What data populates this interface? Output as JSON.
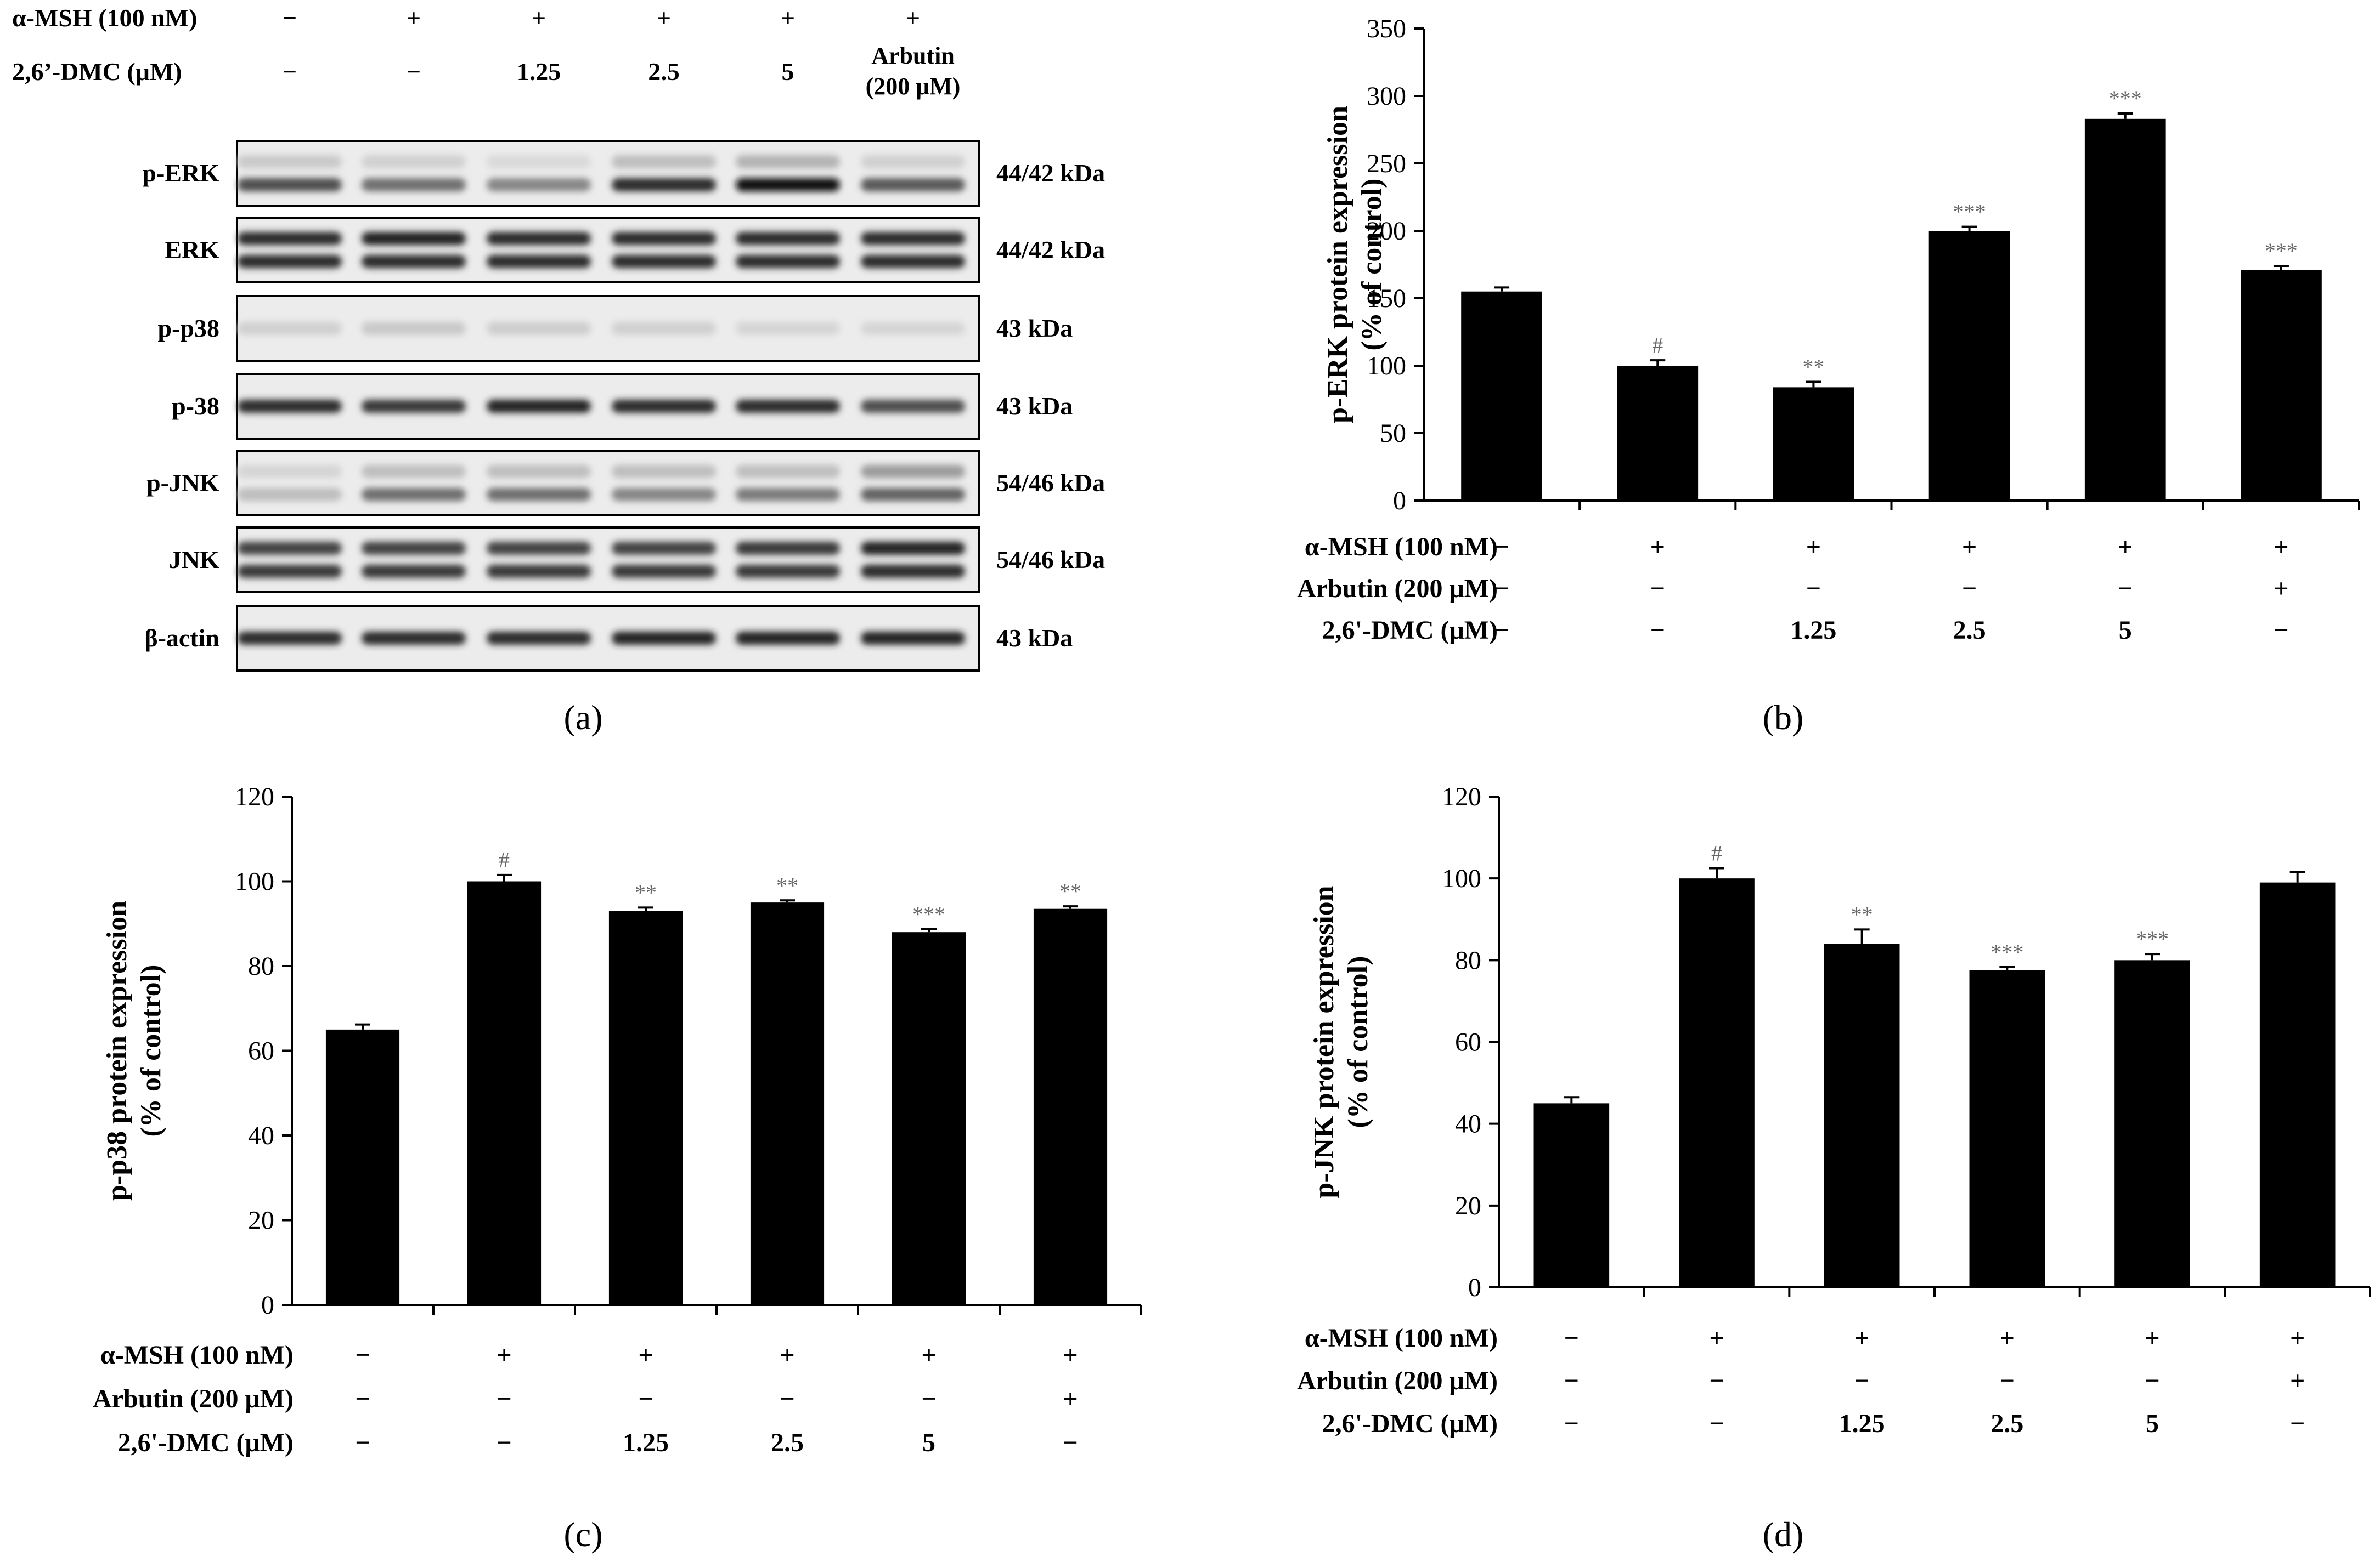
{
  "panel_a": {
    "caption": "(a)",
    "treatment_rows": [
      {
        "label": "α-MSH (100 nM)",
        "values": [
          "−",
          "+",
          "+",
          "+",
          "+",
          "+"
        ]
      },
      {
        "label": "2,6’-DMC (μM)",
        "values": [
          "−",
          "−",
          "1.25",
          "2.5",
          "5",
          "Arbutin\n(200 μM)"
        ]
      }
    ],
    "blots": [
      {
        "label": "p-ERK",
        "size": "44/42 kDa",
        "bands": 2,
        "intensity": [
          [
            0.15,
            0.12,
            0.08,
            0.2,
            0.25,
            0.12
          ],
          [
            0.7,
            0.55,
            0.45,
            0.85,
            0.98,
            0.65
          ]
        ]
      },
      {
        "label": "ERK",
        "size": "44/42 kDa",
        "bands": 2,
        "intensity": [
          [
            0.85,
            0.9,
            0.85,
            0.85,
            0.85,
            0.85
          ],
          [
            0.85,
            0.85,
            0.85,
            0.85,
            0.85,
            0.85
          ]
        ]
      },
      {
        "label": "p-p38",
        "size": "43 kDa",
        "bands": 1,
        "intensity": [
          [
            0.12,
            0.15,
            0.13,
            0.12,
            0.1,
            0.1
          ]
        ]
      },
      {
        "label": "p-38",
        "size": "43 kDa",
        "bands": 1,
        "intensity": [
          [
            0.85,
            0.8,
            0.9,
            0.85,
            0.85,
            0.7
          ]
        ]
      },
      {
        "label": "p-JNK",
        "size": "54/46 kDa",
        "bands": 2,
        "intensity": [
          [
            0.1,
            0.2,
            0.2,
            0.2,
            0.2,
            0.35
          ],
          [
            0.2,
            0.55,
            0.55,
            0.45,
            0.5,
            0.6
          ]
        ]
      },
      {
        "label": "JNK",
        "size": "54/46 kDa",
        "bands": 2,
        "intensity": [
          [
            0.75,
            0.75,
            0.75,
            0.75,
            0.8,
            0.9
          ],
          [
            0.8,
            0.8,
            0.8,
            0.8,
            0.8,
            0.85
          ]
        ]
      },
      {
        "label": "β-actin",
        "size": "43 kDa",
        "bands": 1,
        "intensity": [
          [
            0.85,
            0.85,
            0.85,
            0.9,
            0.9,
            0.9
          ]
        ]
      }
    ]
  },
  "chart_data": [
    {
      "type": "bar",
      "caption": "(b)",
      "ylabel": [
        "p-ERK protein expression",
        "(% of control)"
      ],
      "ylim": [
        0,
        350
      ],
      "yticks": [
        0,
        50,
        100,
        150,
        200,
        250,
        300,
        350
      ],
      "values": [
        155,
        100,
        84,
        200,
        283,
        171
      ],
      "errors": [
        3,
        4,
        4,
        3,
        4,
        3
      ],
      "significance": [
        "",
        "#",
        "**",
        "***",
        "***",
        "***"
      ],
      "treatment_rows": [
        {
          "label": "α-MSH (100 nM)",
          "values": [
            "−",
            "+",
            "+",
            "+",
            "+",
            "+"
          ]
        },
        {
          "label": "Arbutin (200 μM)",
          "values": [
            "−",
            "−",
            "−",
            "−",
            "−",
            "+"
          ]
        },
        {
          "label": "2,6'-DMC (μM)",
          "values": [
            "−",
            "−",
            "1.25",
            "2.5",
            "5",
            "−"
          ]
        }
      ]
    },
    {
      "type": "bar",
      "caption": "(c)",
      "ylabel": [
        "p-p38 protein expression",
        "(% of control)"
      ],
      "ylim": [
        0,
        120
      ],
      "yticks": [
        0,
        20,
        40,
        60,
        80,
        100,
        120
      ],
      "values": [
        65,
        100,
        93,
        95,
        88,
        93.5
      ],
      "errors": [
        1.2,
        1.5,
        0.8,
        0.5,
        0.7,
        0.6
      ],
      "significance": [
        "",
        "#",
        "**",
        "**",
        "***",
        "**"
      ],
      "treatment_rows": [
        {
          "label": "α-MSH (100 nM)",
          "values": [
            "−",
            "+",
            "+",
            "+",
            "+",
            "+"
          ]
        },
        {
          "label": "Arbutin (200 μM)",
          "values": [
            "−",
            "−",
            "−",
            "−",
            "−",
            "+"
          ]
        },
        {
          "label": "2,6'-DMC (μM)",
          "values": [
            "−",
            "−",
            "1.25",
            "2.5",
            "5",
            "−"
          ]
        }
      ]
    },
    {
      "type": "bar",
      "caption": "(d)",
      "ylabel": [
        "p-JNK protein expression",
        "(% of control)"
      ],
      "ylim": [
        0,
        120
      ],
      "yticks": [
        0,
        20,
        40,
        60,
        80,
        100,
        120
      ],
      "values": [
        45,
        100,
        84,
        77.5,
        80,
        99
      ],
      "errors": [
        1.5,
        2.5,
        3.5,
        0.8,
        1.5,
        2.5
      ],
      "significance": [
        "",
        "#",
        "**",
        "***",
        "***",
        ""
      ],
      "treatment_rows": [
        {
          "label": "α-MSH (100 nM)",
          "values": [
            "−",
            "+",
            "+",
            "+",
            "+",
            "+"
          ]
        },
        {
          "label": "Arbutin (200 μM)",
          "values": [
            "−",
            "−",
            "−",
            "−",
            "−",
            "+"
          ]
        },
        {
          "label": "2,6'-DMC (μM)",
          "values": [
            "−",
            "−",
            "1.25",
            "2.5",
            "5",
            "−"
          ]
        }
      ]
    }
  ]
}
